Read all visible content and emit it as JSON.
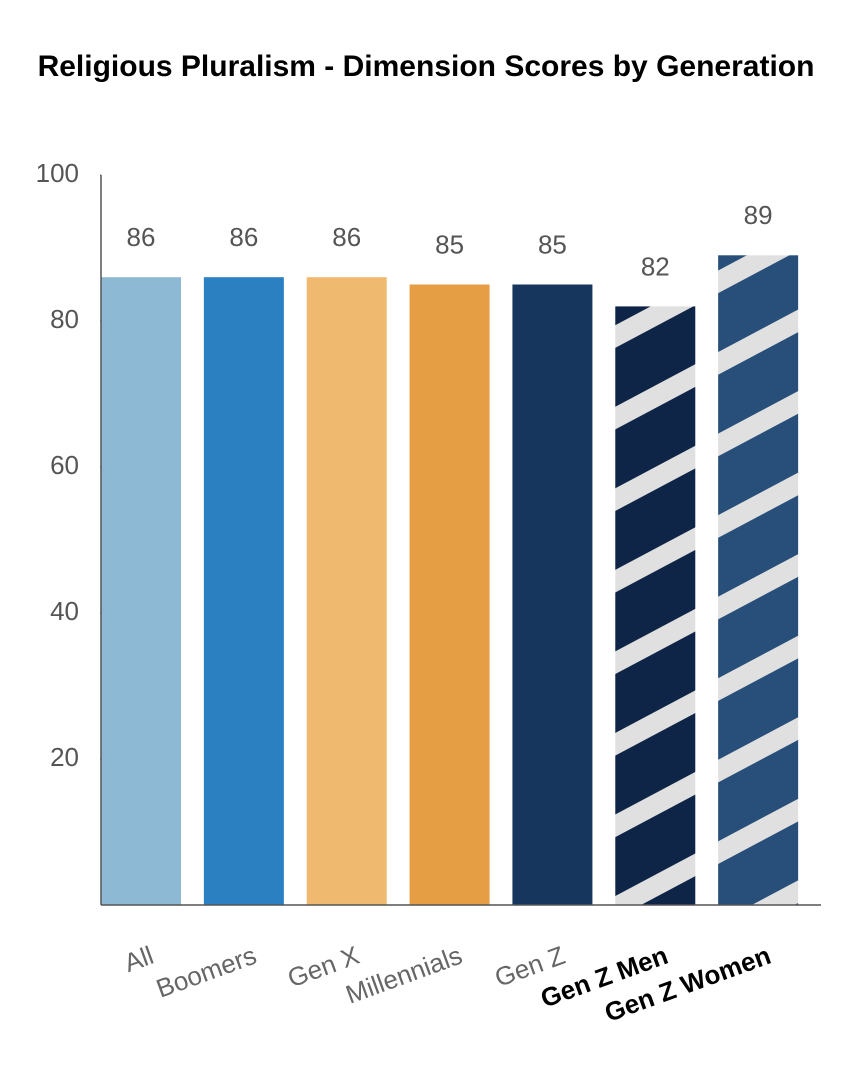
{
  "chart_data": {
    "type": "bar",
    "title": "Religious Pluralism - Dimension Scores by Generation",
    "categories": [
      "All",
      "Boomers",
      "Gen X",
      "Millennials",
      "Gen Z",
      "Gen Z Men",
      "Gen Z Women"
    ],
    "values": [
      86,
      86,
      86,
      85,
      85,
      82,
      89
    ],
    "colors": [
      "#8db9d5",
      "#2a80c1",
      "#efba6f",
      "#e69e45",
      "#16365e",
      "#0f2547",
      "#284f7a"
    ],
    "striped": [
      false,
      false,
      false,
      false,
      false,
      true,
      true
    ],
    "stripe_color": "#e0e0e0",
    "ylim": [
      0,
      100
    ],
    "yticks": [
      20,
      40,
      60,
      80,
      100
    ],
    "grid": false
  }
}
